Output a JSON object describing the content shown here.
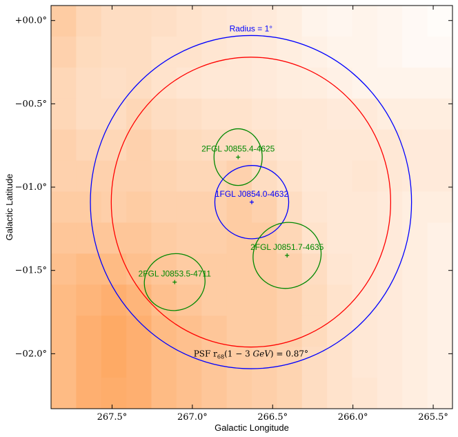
{
  "chart_data": {
    "type": "sky-map",
    "xlabel": "Galactic Longitude",
    "ylabel": "Galactic Latitude",
    "xlim": [
      267.88,
      265.38
    ],
    "ylim": [
      -2.33,
      0.09
    ],
    "x_ticks": [
      {
        "value": 267.5,
        "label": "267.5°"
      },
      {
        "value": 267.0,
        "label": "267.0°"
      },
      {
        "value": 266.5,
        "label": "266.5°"
      },
      {
        "value": 266.0,
        "label": "266.0°"
      },
      {
        "value": 265.5,
        "label": "265.5°"
      }
    ],
    "y_ticks": [
      {
        "value": 0.0,
        "label": "+00.0°"
      },
      {
        "value": -0.5,
        "label": "−00.5°"
      },
      {
        "value": -1.0,
        "label": "−01.0°"
      },
      {
        "value": -1.5,
        "label": "−01.5°"
      },
      {
        "value": -2.0,
        "label": "−02.0°"
      }
    ],
    "background": "counts map (orange colormap, brighter toward lower-left)",
    "colors": {
      "roi": "#0000ff",
      "psf": "#ff0000",
      "source_2fgl": "#008800",
      "source_1fgl": "#0000ff",
      "low": "#ffffff",
      "high": "#fd8d32"
    },
    "regions": [
      {
        "name": "roi-radius-circle",
        "shape": "circle",
        "l": 266.635,
        "b": -1.09,
        "radius_deg": 1.0,
        "color": "#0000ff",
        "label": "Radius = 1°"
      },
      {
        "name": "psf-circle",
        "shape": "circle",
        "l": 266.635,
        "b": -1.09,
        "radius_deg": 0.87,
        "color": "#ff0000",
        "label_prefix": "PSF r",
        "label_sub": "68",
        "label_expr": "(1 − 3 ",
        "label_unit": "GeV",
        "label_suffix": ") = 0.87°"
      }
    ],
    "sources": [
      {
        "name": "2FGL J0855.4-4625",
        "l": 266.715,
        "b": -0.82,
        "ellipse_a": 0.15,
        "ellipse_b": 0.17,
        "angle": 0,
        "color": "#008800"
      },
      {
        "name": "1FGL J0854.0-4632",
        "l": 266.63,
        "b": -1.09,
        "ellipse_a": 0.23,
        "ellipse_b": 0.22,
        "angle": 0,
        "color": "#0000ff"
      },
      {
        "name": "2FGL J0851.7-4635",
        "l": 266.41,
        "b": -1.41,
        "ellipse_a": 0.215,
        "ellipse_b": 0.195,
        "angle": -30,
        "color": "#008800"
      },
      {
        "name": "2FGL J0853.5-4711",
        "l": 267.11,
        "b": -1.57,
        "ellipse_a": 0.19,
        "ellipse_b": 0.17,
        "angle": -15,
        "color": "#008800"
      }
    ],
    "intensity_grid": [
      [
        0.45,
        0.35,
        0.3,
        0.3,
        0.28,
        0.25,
        0.22,
        0.2,
        0.18,
        0.15,
        0.1,
        0.08,
        0.1,
        0.08,
        0.05,
        0.03
      ],
      [
        0.4,
        0.32,
        0.3,
        0.3,
        0.25,
        0.25,
        0.22,
        0.2,
        0.18,
        0.15,
        0.12,
        0.1,
        0.1,
        0.08,
        0.05,
        0.05
      ],
      [
        0.35,
        0.3,
        0.28,
        0.3,
        0.25,
        0.22,
        0.2,
        0.2,
        0.18,
        0.16,
        0.15,
        0.12,
        0.1,
        0.1,
        0.1,
        0.1
      ],
      [
        0.35,
        0.3,
        0.3,
        0.35,
        0.3,
        0.28,
        0.25,
        0.25,
        0.22,
        0.2,
        0.2,
        0.18,
        0.18,
        0.15,
        0.15,
        0.15
      ],
      [
        0.4,
        0.35,
        0.35,
        0.4,
        0.35,
        0.32,
        0.3,
        0.3,
        0.25,
        0.22,
        0.2,
        0.2,
        0.2,
        0.2,
        0.18,
        0.18
      ],
      [
        0.4,
        0.4,
        0.4,
        0.4,
        0.38,
        0.35,
        0.35,
        0.4,
        0.3,
        0.25,
        0.2,
        0.2,
        0.22,
        0.2,
        0.18,
        0.18
      ],
      [
        0.45,
        0.45,
        0.42,
        0.45,
        0.4,
        0.4,
        0.4,
        0.45,
        0.4,
        0.3,
        0.22,
        0.2,
        0.2,
        0.18,
        0.15,
        0.15
      ],
      [
        0.5,
        0.5,
        0.5,
        0.5,
        0.45,
        0.42,
        0.42,
        0.45,
        0.45,
        0.35,
        0.25,
        0.2,
        0.2,
        0.18,
        0.15,
        0.12
      ],
      [
        0.55,
        0.6,
        0.6,
        0.55,
        0.5,
        0.45,
        0.45,
        0.45,
        0.45,
        0.4,
        0.3,
        0.22,
        0.2,
        0.18,
        0.15,
        0.12
      ],
      [
        0.6,
        0.65,
        0.7,
        0.65,
        0.55,
        0.5,
        0.45,
        0.45,
        0.45,
        0.4,
        0.32,
        0.25,
        0.2,
        0.18,
        0.15,
        0.12
      ],
      [
        0.6,
        0.7,
        0.75,
        0.7,
        0.6,
        0.55,
        0.5,
        0.45,
        0.45,
        0.4,
        0.32,
        0.25,
        0.2,
        0.18,
        0.15,
        0.12
      ],
      [
        0.6,
        0.7,
        0.75,
        0.7,
        0.6,
        0.55,
        0.5,
        0.45,
        0.42,
        0.38,
        0.3,
        0.25,
        0.2,
        0.18,
        0.15,
        0.12
      ],
      [
        0.6,
        0.7,
        0.72,
        0.7,
        0.6,
        0.55,
        0.5,
        0.45,
        0.42,
        0.38,
        0.3,
        0.25,
        0.22,
        0.18,
        0.15,
        0.12
      ]
    ]
  }
}
